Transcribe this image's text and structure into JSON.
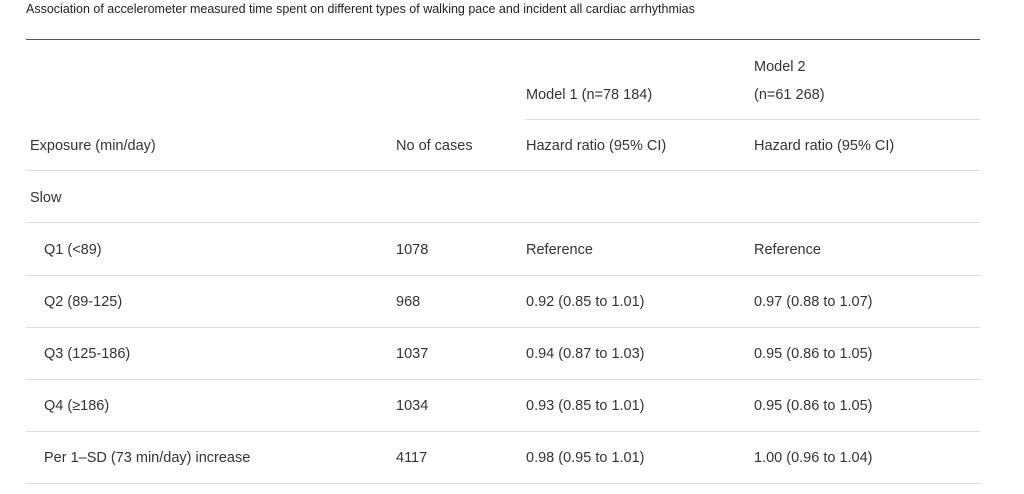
{
  "caption": "Association of accelerometer measured time spent on different types of walking pace and incident all cardiac arrhythmias",
  "header": {
    "model1": "Model 1 (n=78 184)",
    "model2_line1": "Model 2",
    "model2_line2": "(n=61 268)",
    "exposure": "Exposure (min/day)",
    "cases": "No of cases",
    "hr1": "Hazard ratio (95% CI)",
    "hr2": "Hazard ratio (95% CI)"
  },
  "section": "Slow",
  "rows": [
    {
      "exposure": "Q1 (<89)",
      "cases": "1078",
      "m1": "Reference",
      "m2": "Reference"
    },
    {
      "exposure": "Q2 (89-125)",
      "cases": "968",
      "m1": "0.92 (0.85 to 1.01)",
      "m2": "0.97 (0.88 to 1.07)"
    },
    {
      "exposure": "Q3 (125-186)",
      "cases": "1037",
      "m1": "0.94 (0.87 to 1.03)",
      "m2": "0.95 (0.86 to 1.05)"
    },
    {
      "exposure": "Q4 (≥186)",
      "cases": "1034",
      "m1": "0.93 (0.85 to 1.01)",
      "m2": "0.95 (0.86 to 1.05)"
    },
    {
      "exposure": "Per 1–SD (73 min/day) increase",
      "cases": "4117",
      "m1": "0.98 (0.95 to 1.01)",
      "m2": "1.00 (0.96 to 1.04)"
    }
  ]
}
